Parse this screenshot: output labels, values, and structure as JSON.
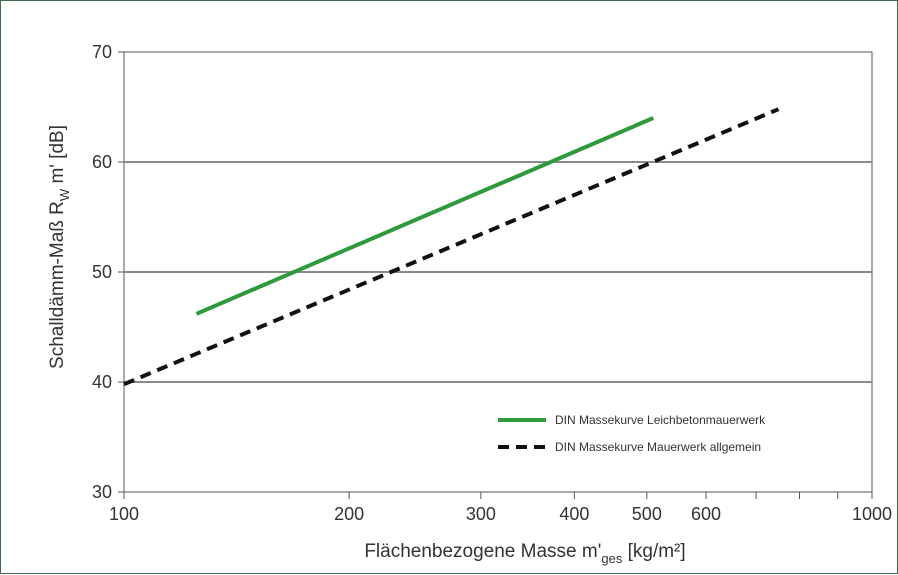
{
  "chart_data": {
    "type": "line",
    "xscale": "log",
    "xlim": [
      100,
      1000
    ],
    "ylim": [
      30,
      70
    ],
    "xticks": [
      100,
      200,
      300,
      400,
      500,
      600,
      1000
    ],
    "xticklabels": [
      "100",
      "200",
      "300",
      "400",
      "500",
      "600",
      "1000"
    ],
    "xminorticks": [
      700,
      800,
      900
    ],
    "yticks": [
      30,
      40,
      50,
      60,
      70
    ],
    "yticklabels": [
      "30",
      "40",
      "50",
      "60",
      "70"
    ],
    "grid": "horizontal",
    "xlabel": {
      "main": "Flächenbezogene Masse m'",
      "sub": "ges",
      "unit": " [kg/m²]"
    },
    "ylabel": {
      "main": "Schalldämm-Maß R",
      "sub": "W",
      "unit": " m' [dB]"
    },
    "legend_position": "bottom-right",
    "series": [
      {
        "name": "DIN Massekurve Leichbetonmauerwerk",
        "color": "#2e9a3c",
        "style": "solid",
        "x": [
          125,
          510
        ],
        "y": [
          46.2,
          64
        ]
      },
      {
        "name": "DIN Massekurve Mauerwerk allgemein",
        "color": "#111111",
        "style": "dashed",
        "x": [
          100,
          750
        ],
        "y": [
          39.8,
          64.8
        ]
      }
    ]
  }
}
